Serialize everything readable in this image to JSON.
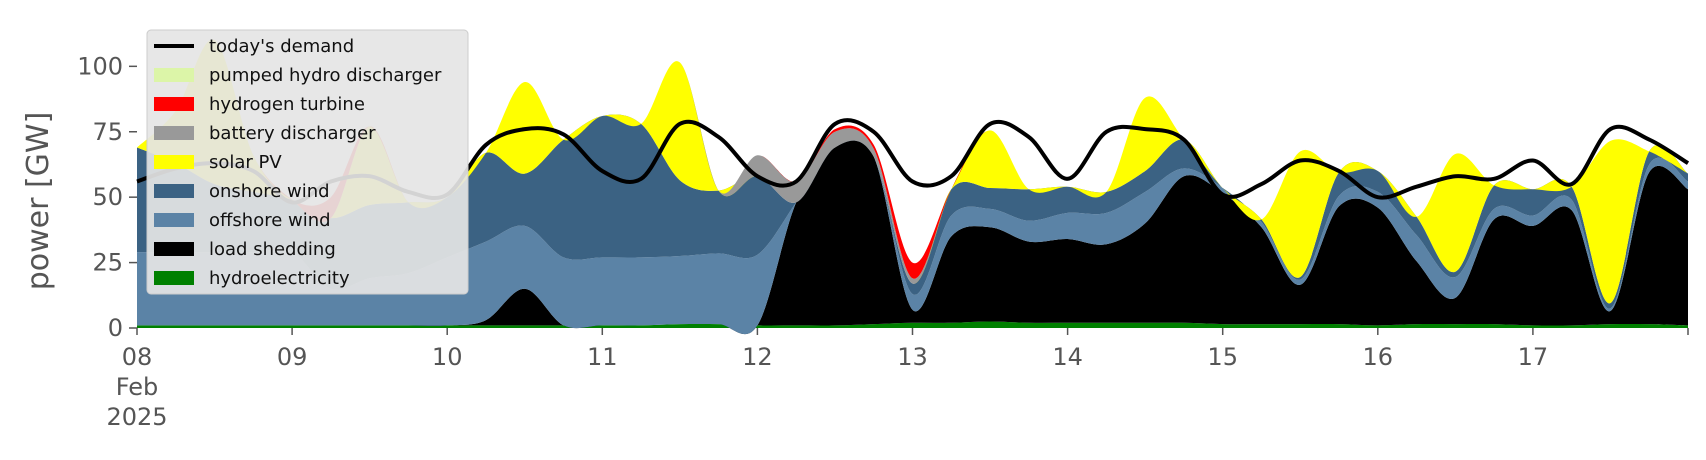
{
  "chart_data": {
    "type": "area",
    "stacked": true,
    "title": "",
    "xlabel": "",
    "ylabel": "power [GW]",
    "ylim": [
      0,
      120
    ],
    "xlim": [
      "2025-02-08T00:00",
      "2025-02-18T00:00"
    ],
    "y_ticks": [
      "0",
      "25",
      "50",
      "75",
      "100"
    ],
    "x_ticks": [
      {
        "date": "2025-02-08",
        "lines": [
          "08",
          "Feb",
          "2025"
        ]
      },
      {
        "date": "2025-02-09",
        "lines": [
          "09"
        ]
      },
      {
        "date": "2025-02-10",
        "lines": [
          "10"
        ]
      },
      {
        "date": "2025-02-11",
        "lines": [
          "11"
        ]
      },
      {
        "date": "2025-02-12",
        "lines": [
          "12"
        ]
      },
      {
        "date": "2025-02-13",
        "lines": [
          "13"
        ]
      },
      {
        "date": "2025-02-14",
        "lines": [
          "14"
        ]
      },
      {
        "date": "2025-02-15",
        "lines": [
          "15"
        ]
      },
      {
        "date": "2025-02-16",
        "lines": [
          "16"
        ]
      },
      {
        "date": "2025-02-17",
        "lines": [
          "17"
        ]
      }
    ],
    "grid": true,
    "legend_position": "top-left",
    "legend": [
      {
        "label": "today's demand",
        "color": "#000000",
        "kind": "line"
      },
      {
        "label": "pumped hydro discharger",
        "color": "#dcf5a8",
        "kind": "patch"
      },
      {
        "label": "hydrogen turbine",
        "color": "#ff0000",
        "kind": "patch"
      },
      {
        "label": "battery discharger",
        "color": "#999999",
        "kind": "patch"
      },
      {
        "label": "solar PV",
        "color": "#ffff00",
        "kind": "patch"
      },
      {
        "label": "onshore wind",
        "color": "#3b6283",
        "kind": "patch"
      },
      {
        "label": "offshore wind",
        "color": "#5b83a6",
        "kind": "patch"
      },
      {
        "label": "load shedding",
        "color": "#000000",
        "kind": "patch"
      },
      {
        "label": "hydroelectricity",
        "color": "#008000",
        "kind": "patch"
      }
    ],
    "x": [
      "2025-02-08T00:00",
      "2025-02-08T06:00",
      "2025-02-08T12:00",
      "2025-02-08T18:00",
      "2025-02-09T00:00",
      "2025-02-09T06:00",
      "2025-02-09T12:00",
      "2025-02-09T18:00",
      "2025-02-10T00:00",
      "2025-02-10T06:00",
      "2025-02-10T12:00",
      "2025-02-10T18:00",
      "2025-02-11T00:00",
      "2025-02-11T06:00",
      "2025-02-11T12:00",
      "2025-02-11T18:00",
      "2025-02-12T00:00",
      "2025-02-12T06:00",
      "2025-02-12T12:00",
      "2025-02-12T18:00",
      "2025-02-13T00:00",
      "2025-02-13T06:00",
      "2025-02-13T12:00",
      "2025-02-13T18:00",
      "2025-02-14T00:00",
      "2025-02-14T06:00",
      "2025-02-14T12:00",
      "2025-02-14T18:00",
      "2025-02-15T00:00",
      "2025-02-15T06:00",
      "2025-02-15T12:00",
      "2025-02-15T18:00",
      "2025-02-16T00:00",
      "2025-02-16T06:00",
      "2025-02-16T12:00",
      "2025-02-16T18:00",
      "2025-02-17T00:00",
      "2025-02-17T06:00",
      "2025-02-17T12:00",
      "2025-02-17T18:00",
      "2025-02-18T00:00"
    ],
    "series": [
      {
        "name": "hydroelectricity",
        "color": "#008000",
        "values": [
          1,
          1,
          1,
          1,
          1,
          1,
          1,
          1,
          1,
          1,
          1,
          1,
          1,
          1,
          1.5,
          1.5,
          1,
          1,
          1,
          1.5,
          2,
          2,
          2.5,
          2,
          2,
          2,
          2,
          2,
          1.5,
          1.5,
          1.5,
          1.5,
          1,
          1.5,
          1.5,
          1.5,
          1,
          1,
          1.5,
          1.5,
          1
        ]
      },
      {
        "name": "load shedding",
        "color": "#000000",
        "values": [
          0,
          0,
          0,
          0,
          0,
          0,
          0,
          0,
          0,
          2,
          14,
          0,
          0,
          0,
          0,
          0,
          0,
          47,
          68,
          64,
          5,
          33,
          36,
          31,
          32,
          30,
          38,
          56,
          50,
          37,
          15,
          45,
          45,
          24,
          10,
          40,
          38,
          44,
          5,
          58,
          52
        ]
      },
      {
        "name": "offshore wind",
        "color": "#5b83a6",
        "values": [
          28,
          28,
          28,
          28,
          28,
          14,
          18,
          20,
          26,
          30,
          24,
          26,
          26,
          26,
          26,
          27,
          27,
          0,
          0,
          0,
          6,
          8,
          7,
          8,
          10,
          12,
          12,
          3,
          2,
          2,
          2,
          4,
          6,
          10,
          8,
          4,
          4,
          4,
          1,
          3,
          3
        ]
      },
      {
        "name": "onshore wind",
        "color": "#3b6283",
        "values": [
          40,
          34,
          26,
          23,
          20,
          27,
          28,
          27,
          23,
          34,
          20,
          45,
          54,
          51,
          29,
          24,
          30,
          0,
          0,
          0,
          4,
          10,
          8,
          12,
          10,
          8,
          8,
          11,
          0,
          1,
          1,
          9,
          8,
          7,
          2,
          9,
          10,
          5,
          2,
          5,
          3
        ]
      },
      {
        "name": "solar PV",
        "color": "#ffff00",
        "values": [
          0,
          20,
          55,
          14,
          0,
          0,
          30,
          0,
          0,
          0,
          35,
          0,
          0,
          0,
          45,
          0,
          0,
          0,
          0,
          0,
          0,
          0,
          22,
          0,
          0,
          0,
          28,
          0,
          0,
          0,
          48,
          0,
          0,
          0,
          45,
          0,
          0,
          0,
          62,
          0,
          0
        ]
      },
      {
        "name": "battery discharger",
        "color": "#999999",
        "values": [
          0,
          0,
          0,
          0,
          0,
          0,
          0,
          0,
          0,
          0,
          0,
          0,
          0,
          0,
          0,
          0,
          8,
          8,
          6,
          3,
          2,
          0,
          0,
          0,
          0,
          0,
          0,
          0,
          0,
          0,
          0,
          0,
          0,
          0,
          0,
          0,
          0,
          0,
          0,
          0,
          0
        ]
      },
      {
        "name": "hydrogen turbine",
        "color": "#ff0000",
        "values": [
          0,
          0,
          0,
          0,
          0,
          8,
          0,
          0,
          0,
          0,
          0,
          0,
          0,
          0,
          0,
          0,
          0,
          0,
          1,
          1.5,
          6,
          0,
          0,
          0,
          0,
          0,
          0,
          0,
          0,
          0,
          0,
          0,
          0,
          0,
          0,
          0,
          0,
          0,
          0,
          0,
          0
        ]
      },
      {
        "name": "pumped hydro discharger",
        "color": "#dcf5a8",
        "values": [
          0,
          0,
          0,
          0,
          0,
          0,
          0,
          0,
          0,
          0,
          0,
          0,
          0,
          0,
          0,
          0,
          0,
          0,
          0,
          0,
          0,
          0,
          0,
          0,
          0,
          0,
          0,
          0,
          0,
          0,
          0,
          0,
          0,
          0,
          0,
          0,
          0,
          0,
          0,
          0,
          0
        ]
      }
    ],
    "demand": {
      "name": "today's demand",
      "color": "#000000",
      "values": [
        56,
        61,
        63,
        60,
        48,
        56,
        58,
        52,
        51,
        70,
        76,
        74,
        60,
        57,
        78,
        73,
        58,
        56,
        78,
        75,
        56,
        58,
        78,
        73,
        57,
        75,
        76,
        72,
        51,
        55,
        64,
        60,
        50,
        54,
        58,
        57,
        64,
        55,
        76,
        72,
        63
      ]
    }
  }
}
